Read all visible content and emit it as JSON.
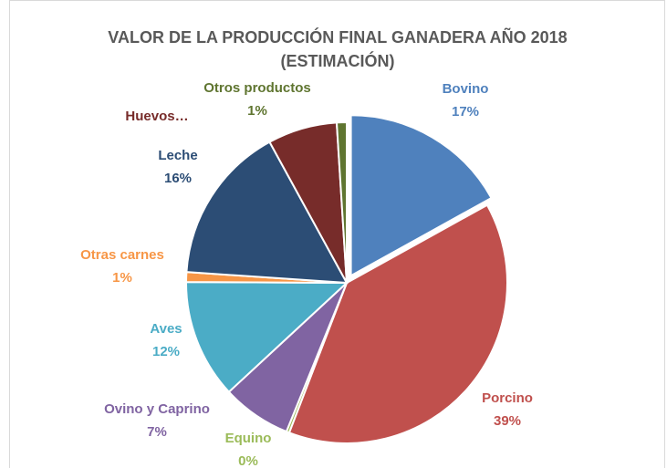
{
  "chart_data": {
    "type": "pie",
    "title": "VALOR DE LA PRODUCCIÓN FINAL GANADERA AÑO 2018",
    "subtitle": "(ESTIMACIÓN)",
    "categories": [
      "Bovino",
      "Porcino",
      "Equino",
      "Ovino y Caprino",
      "Aves",
      "Otras carnes",
      "Leche",
      "Huevos…",
      "Otros productos"
    ],
    "values": [
      17,
      39,
      0.3,
      7,
      12,
      1,
      16,
      7,
      1
    ],
    "value_labels": [
      "17%",
      "39%",
      "0%",
      "7%",
      "12%",
      "1%",
      "16%",
      null,
      "1%"
    ],
    "colors": [
      "#4f81bd",
      "#c0504d",
      "#9bbb59",
      "#8064a2",
      "#4bacc6",
      "#f79646",
      "#2c4d75",
      "#772c2a",
      "#5f7530"
    ]
  }
}
